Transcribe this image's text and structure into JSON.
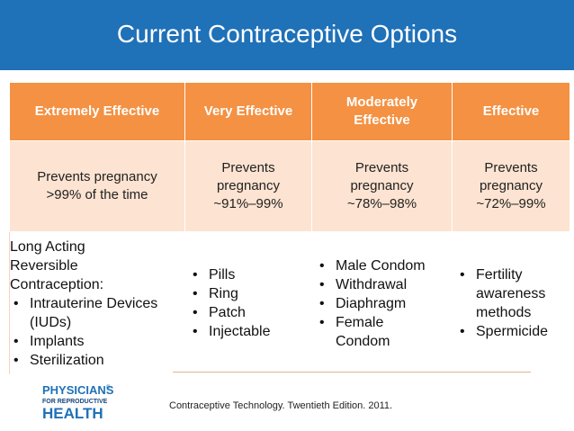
{
  "slide": {
    "title": "Current Contraceptive Options",
    "citation": "Contraceptive Technology. Twentieth Edition. 2011."
  },
  "logo": {
    "line1": "PHYSICIANS",
    "line2": "FOR REPRODUCTIVE",
    "line3": "HEALTH",
    "mark": "®",
    "colors": {
      "blue": "#1f71b8",
      "dark_blue": "#15457d"
    }
  },
  "colors": {
    "header_bg": "#1f71b8",
    "table_header_bg": "#f49143",
    "rate_row_bg": "#fde3d1"
  },
  "table": {
    "headers": [
      "Extremely Effective",
      "Very Effective",
      "Moderately Effective",
      "Effective"
    ],
    "rates": [
      "Prevents pregnancy >99% of the time",
      "Prevents pregnancy ~91%–99%",
      "Prevents pregnancy ~78%–98%",
      "Prevents pregnancy ~72%–99%"
    ],
    "methods": [
      {
        "intro": "Long Acting Reversible Contraception:",
        "items": [
          "Intrauterine Devices (IUDs)",
          "Implants",
          "Sterilization"
        ]
      },
      {
        "items": [
          "Pills",
          "Ring",
          "Patch",
          "Injectable"
        ]
      },
      {
        "items": [
          "Male Condom",
          "Withdrawal",
          "Diaphragm",
          "Female Condom"
        ]
      },
      {
        "items": [
          "Fertility awareness methods",
          "Spermicide"
        ]
      }
    ]
  }
}
